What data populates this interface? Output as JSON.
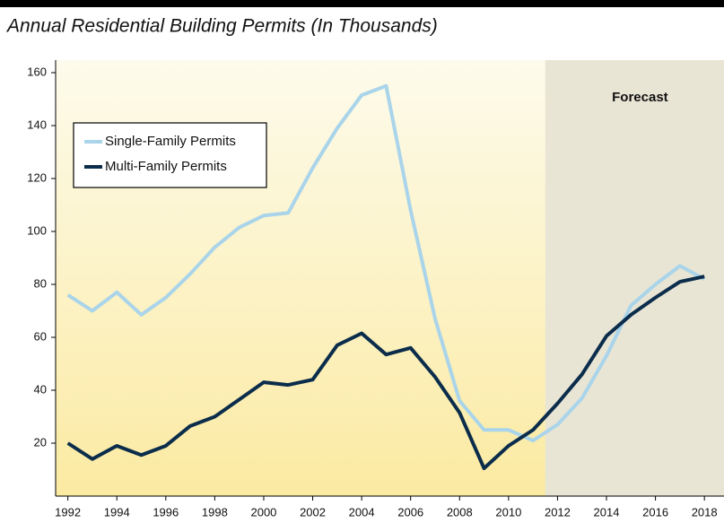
{
  "chart_data": {
    "type": "line",
    "title": "Annual Residential Building Permits (In Thousands)",
    "x": [
      1992,
      1993,
      1994,
      1995,
      1996,
      1997,
      1998,
      1999,
      2000,
      2001,
      2002,
      2003,
      2004,
      2005,
      2006,
      2007,
      2008,
      2009,
      2010,
      2011,
      2012,
      2013,
      2014,
      2015,
      2016,
      2017,
      2018
    ],
    "series": [
      {
        "name": "Single-Family Permits",
        "color": "#a9d4ea",
        "values": [
          76,
          70,
          77,
          68.5,
          75,
          84,
          94,
          101.5,
          106,
          107,
          124,
          139,
          151.5,
          155,
          108,
          67,
          36,
          25,
          25,
          21,
          27,
          37,
          53,
          72,
          80,
          87,
          82
        ]
      },
      {
        "name": "Multi-Family Permits",
        "color": "#0b2d4b",
        "values": [
          20,
          14,
          19,
          15.5,
          19,
          26.5,
          30,
          36.5,
          43,
          42,
          44,
          57,
          61.5,
          53.5,
          56,
          45,
          31.5,
          10.5,
          19,
          25,
          35,
          46,
          60.5,
          68.5,
          75,
          81,
          83
        ]
      }
    ],
    "xlim": [
      1991.5,
      2018.8
    ],
    "xticks": [
      1992,
      1994,
      1996,
      1998,
      2000,
      2002,
      2004,
      2006,
      2008,
      2010,
      2012,
      2014,
      2016,
      2018
    ],
    "ylim": [
      0,
      160
    ],
    "yticks": [
      20,
      40,
      60,
      80,
      100,
      120,
      140,
      160
    ],
    "forecast": {
      "label": "Forecast",
      "start": 2011.5
    }
  }
}
